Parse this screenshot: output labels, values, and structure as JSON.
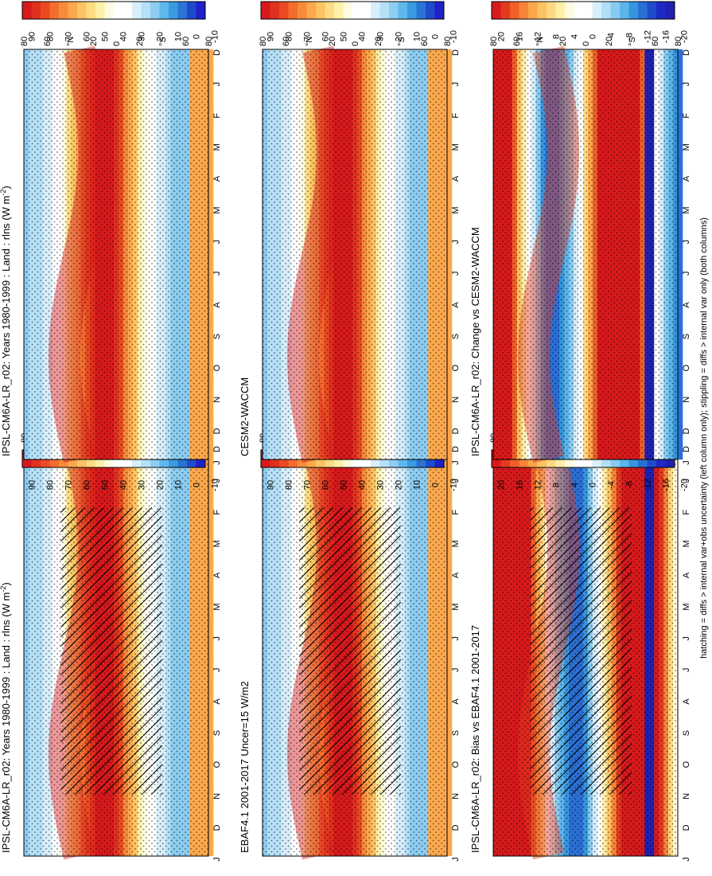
{
  "figure_note": "hatching = diffs > internal var+obs uncertainty (left column only); stippling = diffs > internal var only (both columns)",
  "colors": {
    "full_scale": [
      "#d7191c",
      "#e0301e",
      "#ea4a21",
      "#f46d2e",
      "#f88b3a",
      "#fca84d",
      "#fdc464",
      "#fedc82",
      "#fff0a8",
      "#fffbe0",
      "#ffffff",
      "#ffffff",
      "#d8eefa",
      "#b5e0f7",
      "#8ccdf2",
      "#5fb8ec",
      "#3b9ae0",
      "#2a74d6",
      "#1e4bcc",
      "#2020c8"
    ],
    "diff_scale": [
      "#d7191c",
      "#e43a1f",
      "#f05f29",
      "#f88438",
      "#fca64b",
      "#fdc263",
      "#fed982",
      "#ffefa8",
      "#fffbe0",
      "#ffffff",
      "#ffffff",
      "#d8eefa",
      "#b2def6",
      "#88cbf1",
      "#5cb5ea",
      "#3795dd",
      "#2a6fd4",
      "#1f4bcb",
      "#1e2ac5",
      "#2020b0"
    ]
  },
  "chart_data": [
    {
      "type": "heatmap",
      "title": "IPSL-CM6A-LR_r02: Years 1980-1999 : Land : rlns (W m",
      "title_superscript": "-2",
      "title_suffix": ")",
      "x": [
        "D",
        "J",
        "F",
        "M",
        "A",
        "M",
        "J",
        "J",
        "A",
        "S",
        "O",
        "N",
        "D",
        "J"
      ],
      "y": [
        "80",
        "60",
        "°N",
        "20",
        "0",
        "20",
        "°S",
        "60",
        "80"
      ],
      "colorbar_ticks": [
        "90",
        "80",
        "70",
        "60",
        "50",
        "40",
        "30",
        "20",
        "10",
        "0",
        "-10"
      ],
      "stippled": true,
      "hatched": true
    },
    {
      "type": "heatmap",
      "title": "IPSL-CM6A-LR_r02: Years 1980-1999 : Land : rlns (W m",
      "title_superscript": "-2",
      "title_suffix": ")",
      "x": [
        "D",
        "J",
        "F",
        "M",
        "A",
        "M",
        "J",
        "J",
        "A",
        "S",
        "O",
        "N",
        "D",
        "J"
      ],
      "y": [
        "80",
        "60",
        "°N",
        "20",
        "0",
        "20",
        "°S",
        "60",
        "80"
      ],
      "colorbar_ticks": [
        "90",
        "80",
        "70",
        "60",
        "50",
        "40",
        "30",
        "20",
        "10",
        "0",
        "-10"
      ],
      "stippled": true,
      "hatched": false
    },
    {
      "type": "heatmap",
      "title": "EBAF4.1 2001-2017 Uncer=15 W/m2",
      "x": [
        "D",
        "J",
        "F",
        "M",
        "A",
        "M",
        "J",
        "J",
        "A",
        "S",
        "O",
        "N",
        "D",
        "J"
      ],
      "y": [
        "80",
        "60",
        "°N",
        "20",
        "0",
        "20",
        "°S",
        "60",
        "80"
      ],
      "colorbar_ticks": [
        "90",
        "80",
        "70",
        "60",
        "50",
        "40",
        "30",
        "20",
        "10",
        "0",
        "-10"
      ],
      "stippled": true,
      "hatched": true
    },
    {
      "type": "heatmap",
      "title": "CESM2-WACCM",
      "x": [
        "D",
        "J",
        "F",
        "M",
        "A",
        "M",
        "J",
        "J",
        "A",
        "S",
        "O",
        "N",
        "D",
        "J"
      ],
      "y": [
        "80",
        "60",
        "°N",
        "20",
        "0",
        "20",
        "°S",
        "60",
        "80"
      ],
      "colorbar_ticks": [
        "90",
        "80",
        "70",
        "60",
        "50",
        "40",
        "30",
        "20",
        "10",
        "0",
        "-10"
      ],
      "stippled": true,
      "hatched": false
    },
    {
      "type": "heatmap",
      "title": "IPSL-CM6A-LR_r02: Bias vs EBAF4.1 2001-2017",
      "x": [
        "D",
        "J",
        "F",
        "M",
        "A",
        "M",
        "J",
        "J",
        "A",
        "S",
        "O",
        "N",
        "D",
        "J"
      ],
      "y": [
        "80",
        "60",
        "°N",
        "20",
        "0",
        "20",
        "°S",
        "60",
        "80"
      ],
      "colorbar_ticks": [
        "20",
        "16",
        "12",
        "8",
        "4",
        "0",
        "-4",
        "-8",
        "-12",
        "-16",
        "-20"
      ],
      "stippled": true,
      "hatched": true
    },
    {
      "type": "heatmap",
      "title": "IPSL-CM6A-LR_r02: Change vs CESM2-WACCM",
      "x": [
        "D",
        "J",
        "F",
        "M",
        "A",
        "M",
        "J",
        "J",
        "A",
        "S",
        "O",
        "N",
        "D",
        "J"
      ],
      "y": [
        "80",
        "60",
        "°N",
        "20",
        "0",
        "20",
        "°S",
        "60",
        "80"
      ],
      "colorbar_ticks": [
        "20",
        "16",
        "12",
        "8",
        "4",
        "0",
        "-4",
        "-8",
        "-12",
        "-16",
        "-20"
      ],
      "stippled": true,
      "hatched": false
    }
  ]
}
